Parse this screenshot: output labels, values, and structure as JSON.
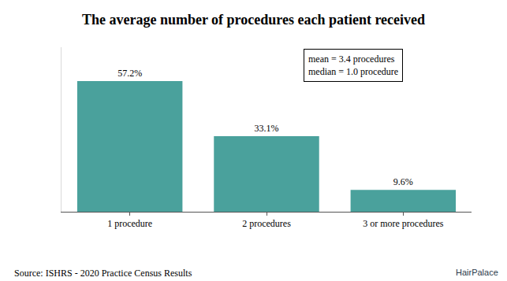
{
  "chart_data": {
    "type": "bar",
    "title": "The average number of procedures each patient received",
    "categories": [
      "1 procedure",
      "2 procedures",
      "3 or more procedures"
    ],
    "values": [
      57.2,
      33.1,
      9.6
    ],
    "value_labels": [
      "57.2%",
      "33.1%",
      "9.6%"
    ],
    "data_labels": true,
    "color": "#4aa19c",
    "ylim": [
      0,
      72
    ],
    "yticks": [],
    "tick_labels": "x",
    "grid": false,
    "annotations": {
      "stats": [
        "mean = 3.4 procedures",
        "median = 1.0 procedure"
      ],
      "source": "Source: ISHRS - 2020 Practice Census Results",
      "brand": "HairPalace"
    }
  }
}
